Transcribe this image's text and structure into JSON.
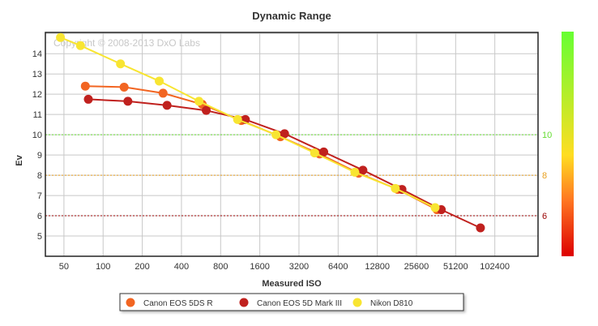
{
  "chart_data": {
    "type": "line",
    "title": "Dynamic Range",
    "xlabel": "Measured ISO",
    "ylabel": "Ev",
    "copyright": "Copyright © 2008-2013 DxO Labs",
    "x_scale": "log2",
    "x_ticks": [
      50,
      100,
      200,
      400,
      800,
      1600,
      3200,
      6400,
      12800,
      25600,
      51200,
      102400
    ],
    "x_tick_labels": [
      "50",
      "100",
      "200",
      "400",
      "800",
      "1600",
      "3200",
      "6400",
      "12800",
      "25600",
      "51200",
      "102400"
    ],
    "xlim": [
      36,
      220000
    ],
    "y_ticks": [
      5,
      6,
      7,
      8,
      9,
      10,
      11,
      12,
      13,
      14
    ],
    "y_tick_labels": [
      "5",
      "6",
      "7",
      "8",
      "9",
      "10",
      "11",
      "12",
      "13",
      "14"
    ],
    "ylim": [
      4,
      15.05
    ],
    "grid": true,
    "legend_position": "bottom",
    "reference_lines": [
      {
        "value": 10,
        "label": "10",
        "color": "#66dd33"
      },
      {
        "value": 8,
        "label": "8",
        "color": "#e8a020"
      },
      {
        "value": 6,
        "label": "6",
        "color": "#990000"
      }
    ],
    "colorbar_colors": [
      "#66ff33",
      "#ffdd22",
      "#ff7722",
      "#dd0000"
    ],
    "series": [
      {
        "name": "Canon EOS 5DS R",
        "color": "#f26522",
        "x": [
          73,
          145,
          289,
          578,
          1155,
          2305,
          4610,
          9200,
          18400,
          36800
        ],
        "y": [
          12.4,
          12.35,
          12.05,
          11.5,
          10.7,
          9.9,
          9.05,
          8.1,
          7.3,
          6.3
        ]
      },
      {
        "name": "Canon EOS 5D Mark III",
        "color": "#c0211e",
        "x": [
          77,
          155,
          310,
          620,
          1240,
          2480,
          4960,
          9920,
          19800,
          39700,
          79400
        ],
        "y": [
          11.75,
          11.65,
          11.45,
          11.2,
          10.75,
          10.05,
          9.15,
          8.25,
          7.3,
          6.3,
          5.4
        ]
      },
      {
        "name": "Nikon D810",
        "color": "#f8e532",
        "x": [
          47,
          67,
          136,
          270,
          545,
          1080,
          2130,
          4220,
          8600,
          17600,
          35600
        ],
        "y": [
          14.8,
          14.4,
          13.5,
          12.65,
          11.65,
          10.75,
          10.0,
          9.1,
          8.15,
          7.35,
          6.4
        ]
      }
    ]
  }
}
